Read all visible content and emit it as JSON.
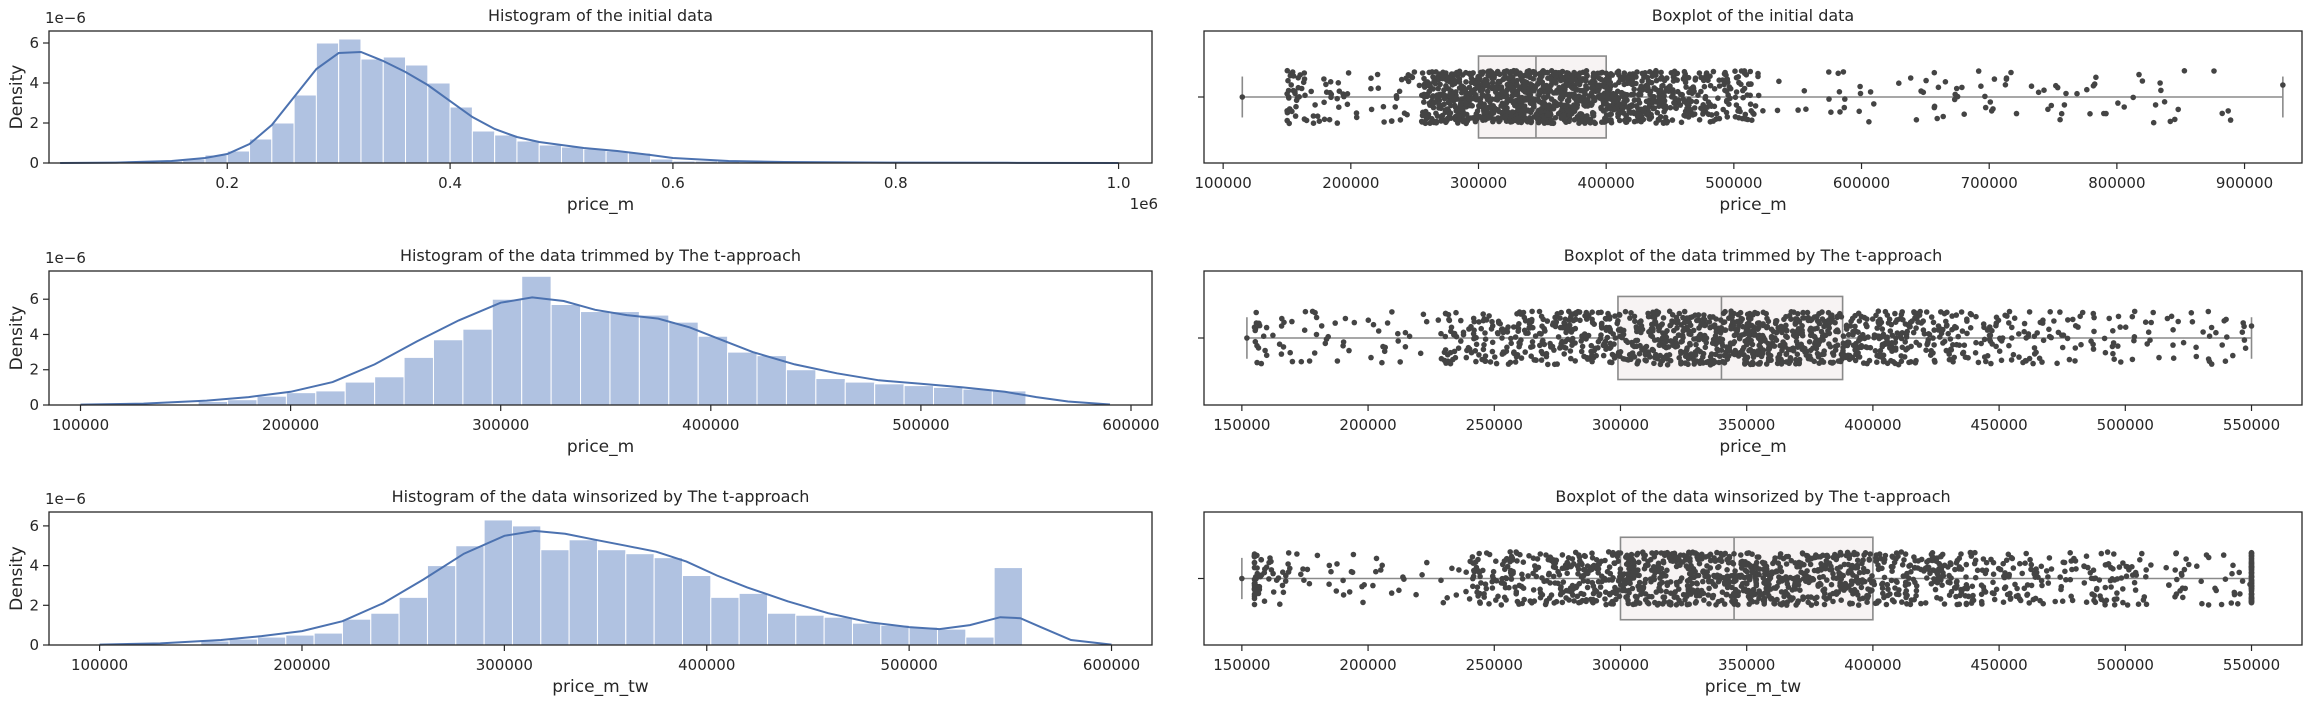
{
  "chart_data": [
    {
      "type": "histogram",
      "title": "Histogram of the initial data",
      "xlabel": "price_m",
      "ylabel": "Density",
      "x_exponent": "1e6",
      "y_exponent": "1e−6",
      "xlim": [
        0.04,
        1.03
      ],
      "ylim": [
        0,
        6.6
      ],
      "xticks": [
        0.2,
        0.4,
        0.6,
        0.8,
        1.0
      ],
      "xtick_labels": [
        "0.2",
        "0.4",
        "0.6",
        "0.8",
        "1.0"
      ],
      "yticks": [
        0,
        2,
        4,
        6
      ],
      "ytick_labels": [
        "0",
        "2",
        "4",
        "6"
      ],
      "bins": [
        {
          "x0": 0.14,
          "x1": 0.16,
          "value": 0.1
        },
        {
          "x0": 0.16,
          "x1": 0.18,
          "value": 0.2
        },
        {
          "x0": 0.18,
          "x1": 0.2,
          "value": 0.4
        },
        {
          "x0": 0.2,
          "x1": 0.22,
          "value": 0.6
        },
        {
          "x0": 0.22,
          "x1": 0.24,
          "value": 1.2
        },
        {
          "x0": 0.24,
          "x1": 0.26,
          "value": 2.0
        },
        {
          "x0": 0.26,
          "x1": 0.28,
          "value": 3.4
        },
        {
          "x0": 0.28,
          "x1": 0.3,
          "value": 6.0
        },
        {
          "x0": 0.3,
          "x1": 0.32,
          "value": 6.2
        },
        {
          "x0": 0.32,
          "x1": 0.34,
          "value": 5.2
        },
        {
          "x0": 0.34,
          "x1": 0.36,
          "value": 5.3
        },
        {
          "x0": 0.36,
          "x1": 0.38,
          "value": 4.9
        },
        {
          "x0": 0.38,
          "x1": 0.4,
          "value": 4.0
        },
        {
          "x0": 0.4,
          "x1": 0.42,
          "value": 2.8
        },
        {
          "x0": 0.42,
          "x1": 0.44,
          "value": 1.6
        },
        {
          "x0": 0.44,
          "x1": 0.46,
          "value": 1.4
        },
        {
          "x0": 0.46,
          "x1": 0.48,
          "value": 1.1
        },
        {
          "x0": 0.48,
          "x1": 0.5,
          "value": 0.9
        },
        {
          "x0": 0.5,
          "x1": 0.52,
          "value": 0.8
        },
        {
          "x0": 0.52,
          "x1": 0.54,
          "value": 0.7
        },
        {
          "x0": 0.54,
          "x1": 0.56,
          "value": 0.6
        },
        {
          "x0": 0.56,
          "x1": 0.58,
          "value": 0.5
        },
        {
          "x0": 0.58,
          "x1": 0.6,
          "value": 0.2
        },
        {
          "x0": 0.6,
          "x1": 0.62,
          "value": 0.1
        },
        {
          "x0": 0.62,
          "x1": 0.64,
          "value": 0.1
        },
        {
          "x0": 0.64,
          "x1": 0.66,
          "value": 0.1
        },
        {
          "x0": 0.66,
          "x1": 0.7,
          "value": 0.05
        },
        {
          "x0": 0.7,
          "x1": 0.8,
          "value": 0.03
        }
      ],
      "kde": {
        "x": [
          0.05,
          0.1,
          0.15,
          0.18,
          0.2,
          0.22,
          0.24,
          0.26,
          0.28,
          0.3,
          0.32,
          0.34,
          0.36,
          0.38,
          0.4,
          0.42,
          0.44,
          0.46,
          0.48,
          0.5,
          0.52,
          0.55,
          0.58,
          0.6,
          0.65,
          0.7,
          0.8,
          0.9,
          1.0
        ],
        "y": [
          0.0,
          0.02,
          0.1,
          0.25,
          0.45,
          0.95,
          1.9,
          3.3,
          4.7,
          5.5,
          5.55,
          5.1,
          4.55,
          3.9,
          3.1,
          2.3,
          1.7,
          1.3,
          1.05,
          0.9,
          0.75,
          0.6,
          0.4,
          0.25,
          0.1,
          0.05,
          0.02,
          0.01,
          0.0
        ]
      }
    },
    {
      "type": "boxplot",
      "title": "Boxplot of the initial data",
      "xlabel": "price_m",
      "xlim": [
        85000,
        945000
      ],
      "xticks": [
        100000,
        200000,
        300000,
        400000,
        500000,
        600000,
        700000,
        800000,
        900000
      ],
      "xtick_labels": [
        "100000",
        "200000",
        "300000",
        "400000",
        "500000",
        "600000",
        "700000",
        "800000",
        "900000"
      ],
      "box": {
        "whisker_low": 115000,
        "q1": 300000,
        "median": 345000,
        "q3": 400000,
        "whisker_high": 930000
      },
      "points": {
        "count": 1500,
        "dense_range": [
          255000,
          520000
        ],
        "sparse_range": [
          150000,
          890000
        ],
        "jitter_fraction": 0.2
      }
    },
    {
      "type": "histogram",
      "title": "Histogram of the data trimmed by The t-approach",
      "xlabel": "price_m",
      "ylabel": "Density",
      "y_exponent": "1e−6",
      "xlim": [
        85000,
        610000
      ],
      "ylim": [
        0,
        7.6
      ],
      "xticks": [
        100000,
        200000,
        300000,
        400000,
        500000,
        600000
      ],
      "xtick_labels": [
        "100000",
        "200000",
        "300000",
        "400000",
        "500000",
        "600000"
      ],
      "yticks": [
        0,
        2,
        4,
        6
      ],
      "ytick_labels": [
        "0",
        "2",
        "4",
        "6"
      ],
      "bins": [
        {
          "x0": 156000,
          "x1": 170000,
          "value": 0.2
        },
        {
          "x0": 170000,
          "x1": 184000,
          "value": 0.3
        },
        {
          "x0": 184000,
          "x1": 198000,
          "value": 0.5
        },
        {
          "x0": 198000,
          "x1": 212000,
          "value": 0.7
        },
        {
          "x0": 212000,
          "x1": 226000,
          "value": 0.8
        },
        {
          "x0": 226000,
          "x1": 240000,
          "value": 1.3
        },
        {
          "x0": 240000,
          "x1": 254000,
          "value": 1.6
        },
        {
          "x0": 254000,
          "x1": 268000,
          "value": 2.7
        },
        {
          "x0": 268000,
          "x1": 282000,
          "value": 3.7
        },
        {
          "x0": 282000,
          "x1": 296000,
          "value": 4.3
        },
        {
          "x0": 296000,
          "x1": 310000,
          "value": 6.0
        },
        {
          "x0": 310000,
          "x1": 324000,
          "value": 7.3
        },
        {
          "x0": 324000,
          "x1": 338000,
          "value": 5.7
        },
        {
          "x0": 338000,
          "x1": 352000,
          "value": 5.3
        },
        {
          "x0": 352000,
          "x1": 366000,
          "value": 5.3
        },
        {
          "x0": 366000,
          "x1": 380000,
          "value": 5.1
        },
        {
          "x0": 380000,
          "x1": 394000,
          "value": 4.7
        },
        {
          "x0": 394000,
          "x1": 408000,
          "value": 3.9
        },
        {
          "x0": 408000,
          "x1": 422000,
          "value": 3.0
        },
        {
          "x0": 422000,
          "x1": 436000,
          "value": 2.8
        },
        {
          "x0": 436000,
          "x1": 450000,
          "value": 2.0
        },
        {
          "x0": 450000,
          "x1": 464000,
          "value": 1.5
        },
        {
          "x0": 464000,
          "x1": 478000,
          "value": 1.3
        },
        {
          "x0": 478000,
          "x1": 492000,
          "value": 1.2
        },
        {
          "x0": 492000,
          "x1": 506000,
          "value": 1.1
        },
        {
          "x0": 506000,
          "x1": 520000,
          "value": 1.0
        },
        {
          "x0": 520000,
          "x1": 534000,
          "value": 0.9
        },
        {
          "x0": 534000,
          "x1": 550000,
          "value": 0.8
        }
      ],
      "kde": {
        "x": [
          100000,
          130000,
          160000,
          180000,
          200000,
          220000,
          240000,
          260000,
          280000,
          300000,
          315000,
          330000,
          345000,
          360000,
          375000,
          390000,
          405000,
          420000,
          440000,
          460000,
          480000,
          500000,
          520000,
          540000,
          555000,
          570000,
          590000
        ],
        "y": [
          0.02,
          0.08,
          0.25,
          0.45,
          0.75,
          1.3,
          2.3,
          3.6,
          4.8,
          5.8,
          6.1,
          5.9,
          5.4,
          5.1,
          4.9,
          4.4,
          3.7,
          3.0,
          2.3,
          1.8,
          1.4,
          1.2,
          1.0,
          0.75,
          0.45,
          0.2,
          0.03
        ]
      }
    },
    {
      "type": "boxplot",
      "title": "Boxplot of the data trimmed by The t-approach",
      "xlabel": "price_m",
      "xlim": [
        135000,
        570000
      ],
      "xticks": [
        150000,
        200000,
        250000,
        300000,
        350000,
        400000,
        450000,
        500000,
        550000
      ],
      "xtick_labels": [
        "150000",
        "200000",
        "250000",
        "300000",
        "350000",
        "400000",
        "450000",
        "500000",
        "550000"
      ],
      "box": {
        "whisker_low": 152000,
        "q1": 299000,
        "median": 340000,
        "q3": 388000,
        "whisker_high": 550000
      },
      "points": {
        "count": 1400,
        "dense_range": [
          230000,
          550000
        ],
        "sparse_range": [
          155000,
          550000
        ],
        "jitter_fraction": 0.2
      }
    },
    {
      "type": "histogram",
      "title": "Histogram of the data winsorized by The t-approach",
      "xlabel": "price_m_tw",
      "ylabel": "Density",
      "y_exponent": "1e−6",
      "xlim": [
        75000,
        620000
      ],
      "ylim": [
        0,
        6.7
      ],
      "xticks": [
        100000,
        200000,
        300000,
        400000,
        500000,
        600000
      ],
      "xtick_labels": [
        "100000",
        "200000",
        "300000",
        "400000",
        "500000",
        "600000"
      ],
      "yticks": [
        0,
        2,
        4,
        6
      ],
      "ytick_labels": [
        "0",
        "2",
        "4",
        "6"
      ],
      "bins": [
        {
          "x0": 150000,
          "x1": 164000,
          "value": 0.2
        },
        {
          "x0": 164000,
          "x1": 178000,
          "value": 0.3
        },
        {
          "x0": 178000,
          "x1": 192000,
          "value": 0.4
        },
        {
          "x0": 192000,
          "x1": 206000,
          "value": 0.5
        },
        {
          "x0": 206000,
          "x1": 220000,
          "value": 0.6
        },
        {
          "x0": 220000,
          "x1": 234000,
          "value": 1.3
        },
        {
          "x0": 234000,
          "x1": 248000,
          "value": 1.6
        },
        {
          "x0": 248000,
          "x1": 262000,
          "value": 2.4
        },
        {
          "x0": 262000,
          "x1": 276000,
          "value": 4.0
        },
        {
          "x0": 276000,
          "x1": 290000,
          "value": 5.0
        },
        {
          "x0": 290000,
          "x1": 304000,
          "value": 6.3
        },
        {
          "x0": 304000,
          "x1": 318000,
          "value": 6.0
        },
        {
          "x0": 318000,
          "x1": 332000,
          "value": 4.8
        },
        {
          "x0": 332000,
          "x1": 346000,
          "value": 5.3
        },
        {
          "x0": 346000,
          "x1": 360000,
          "value": 4.8
        },
        {
          "x0": 360000,
          "x1": 374000,
          "value": 4.6
        },
        {
          "x0": 374000,
          "x1": 388000,
          "value": 4.4
        },
        {
          "x0": 388000,
          "x1": 402000,
          "value": 3.5
        },
        {
          "x0": 402000,
          "x1": 416000,
          "value": 2.4
        },
        {
          "x0": 416000,
          "x1": 430000,
          "value": 2.6
        },
        {
          "x0": 430000,
          "x1": 444000,
          "value": 1.6
        },
        {
          "x0": 444000,
          "x1": 458000,
          "value": 1.5
        },
        {
          "x0": 458000,
          "x1": 472000,
          "value": 1.4
        },
        {
          "x0": 472000,
          "x1": 486000,
          "value": 1.1
        },
        {
          "x0": 486000,
          "x1": 500000,
          "value": 1.0
        },
        {
          "x0": 500000,
          "x1": 514000,
          "value": 0.9
        },
        {
          "x0": 514000,
          "x1": 528000,
          "value": 0.8
        },
        {
          "x0": 528000,
          "x1": 542000,
          "value": 0.4
        },
        {
          "x0": 542000,
          "x1": 556000,
          "value": 3.9
        }
      ],
      "kde": {
        "x": [
          100000,
          130000,
          160000,
          180000,
          200000,
          220000,
          240000,
          260000,
          280000,
          300000,
          315000,
          330000,
          345000,
          360000,
          375000,
          390000,
          405000,
          420000,
          440000,
          460000,
          480000,
          500000,
          515000,
          530000,
          545000,
          555000,
          565000,
          580000,
          600000
        ],
        "y": [
          0.02,
          0.08,
          0.25,
          0.45,
          0.7,
          1.2,
          2.1,
          3.3,
          4.6,
          5.5,
          5.75,
          5.6,
          5.3,
          5.0,
          4.7,
          4.2,
          3.5,
          2.9,
          2.2,
          1.6,
          1.15,
          0.9,
          0.8,
          1.0,
          1.4,
          1.35,
          0.9,
          0.25,
          0.02
        ]
      }
    },
    {
      "type": "boxplot",
      "title": "Boxplot of the data winsorized by The t-approach",
      "xlabel": "price_m_tw",
      "xlim": [
        135000,
        570000
      ],
      "xticks": [
        150000,
        200000,
        250000,
        300000,
        350000,
        400000,
        450000,
        500000,
        550000
      ],
      "xtick_labels": [
        "150000",
        "200000",
        "250000",
        "300000",
        "350000",
        "400000",
        "450000",
        "500000",
        "550000"
      ],
      "box": {
        "whisker_low": 150000,
        "q1": 300000,
        "median": 345000,
        "q3": 400000,
        "whisker_high": 550000
      },
      "points": {
        "count": 1500,
        "dense_range": [
          240000,
          550000
        ],
        "sparse_range": [
          155000,
          550000
        ],
        "jitter_fraction": 0.2,
        "pile_at": [
          150000,
          550000
        ]
      }
    }
  ]
}
